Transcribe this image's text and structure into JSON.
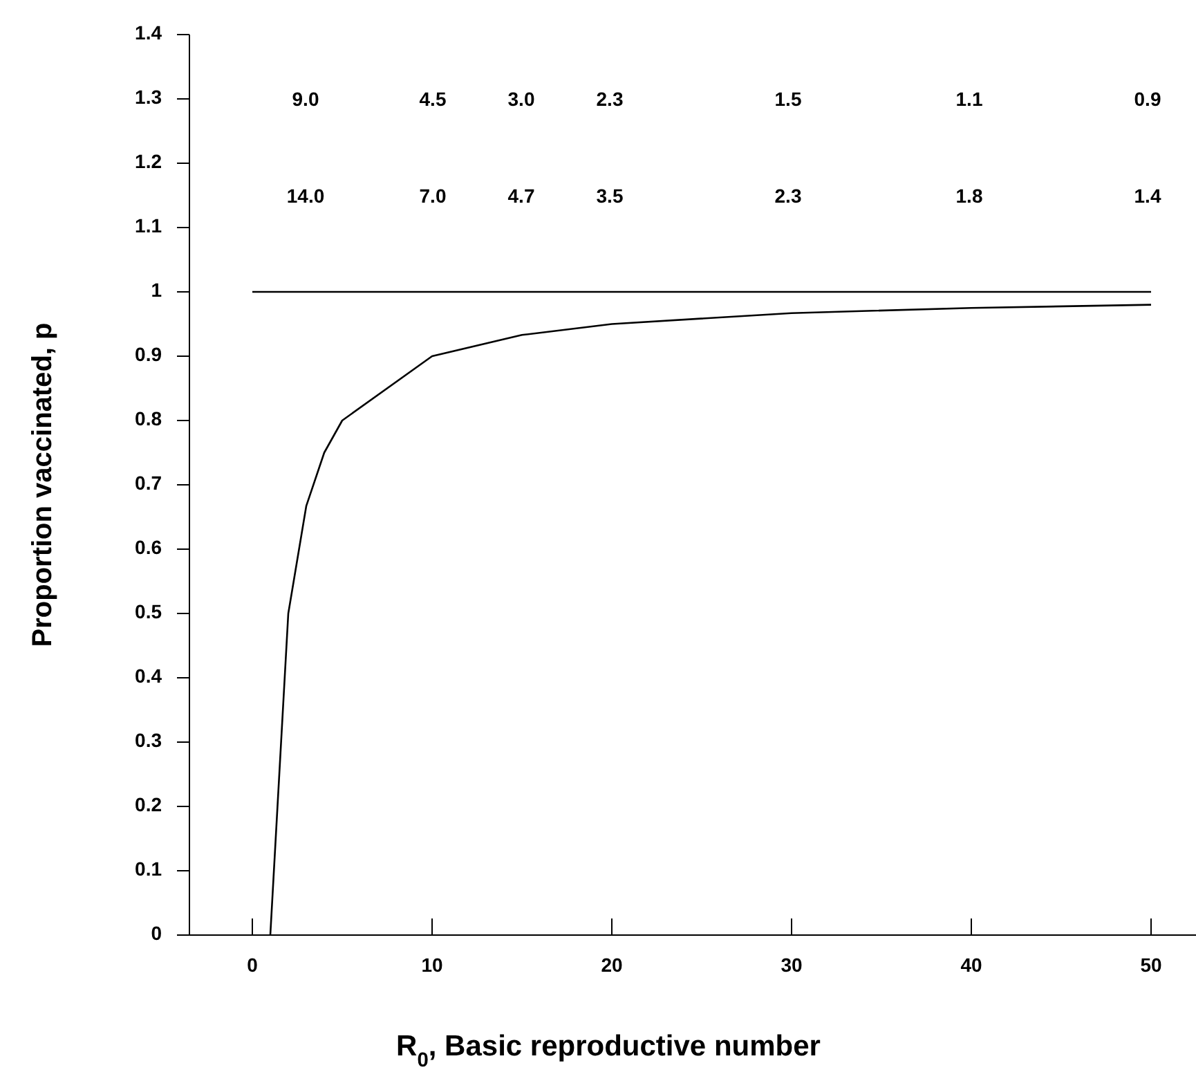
{
  "chart_data": {
    "type": "line",
    "xlabel": "R$_{0}$, Basic reproductive number",
    "ylabel": "Proportion vaccinated, p",
    "xlim": [
      -3.5,
      52.5
    ],
    "ylim": [
      0,
      1.4
    ],
    "xticks": [
      0,
      10,
      20,
      30,
      40,
      50
    ],
    "yticks": [
      0,
      0.1,
      0.2,
      0.3,
      0.4,
      0.5,
      0.6,
      0.7,
      0.8,
      0.9,
      {
        "value": 1,
        "label": "1"
      },
      1.1,
      1.2,
      1.3,
      1.4
    ],
    "series": [
      {
        "color": "#000000",
        "x": [
          1,
          2,
          3,
          4,
          5,
          10,
          15,
          20,
          30,
          40,
          50
        ],
        "values": [
          0,
          0.5,
          0.667,
          0.75,
          0.8,
          0.9,
          0.933,
          0.95,
          0.967,
          0.975,
          0.98
        ]
      },
      {
        "color": "#000000",
        "x": [
          0,
          50
        ],
        "values": [
          1,
          1
        ]
      }
    ],
    "annotations": [
      "9.0",
      "4.5",
      "3.0",
      "2.3",
      "1.5",
      "1.1",
      "0.9",
      "14.0",
      "7.0",
      "4.7",
      "3.5",
      "2.3",
      "1.8",
      "1.4"
    ],
    "grid": false,
    "marker": "none",
    "line_style": "solid"
  }
}
